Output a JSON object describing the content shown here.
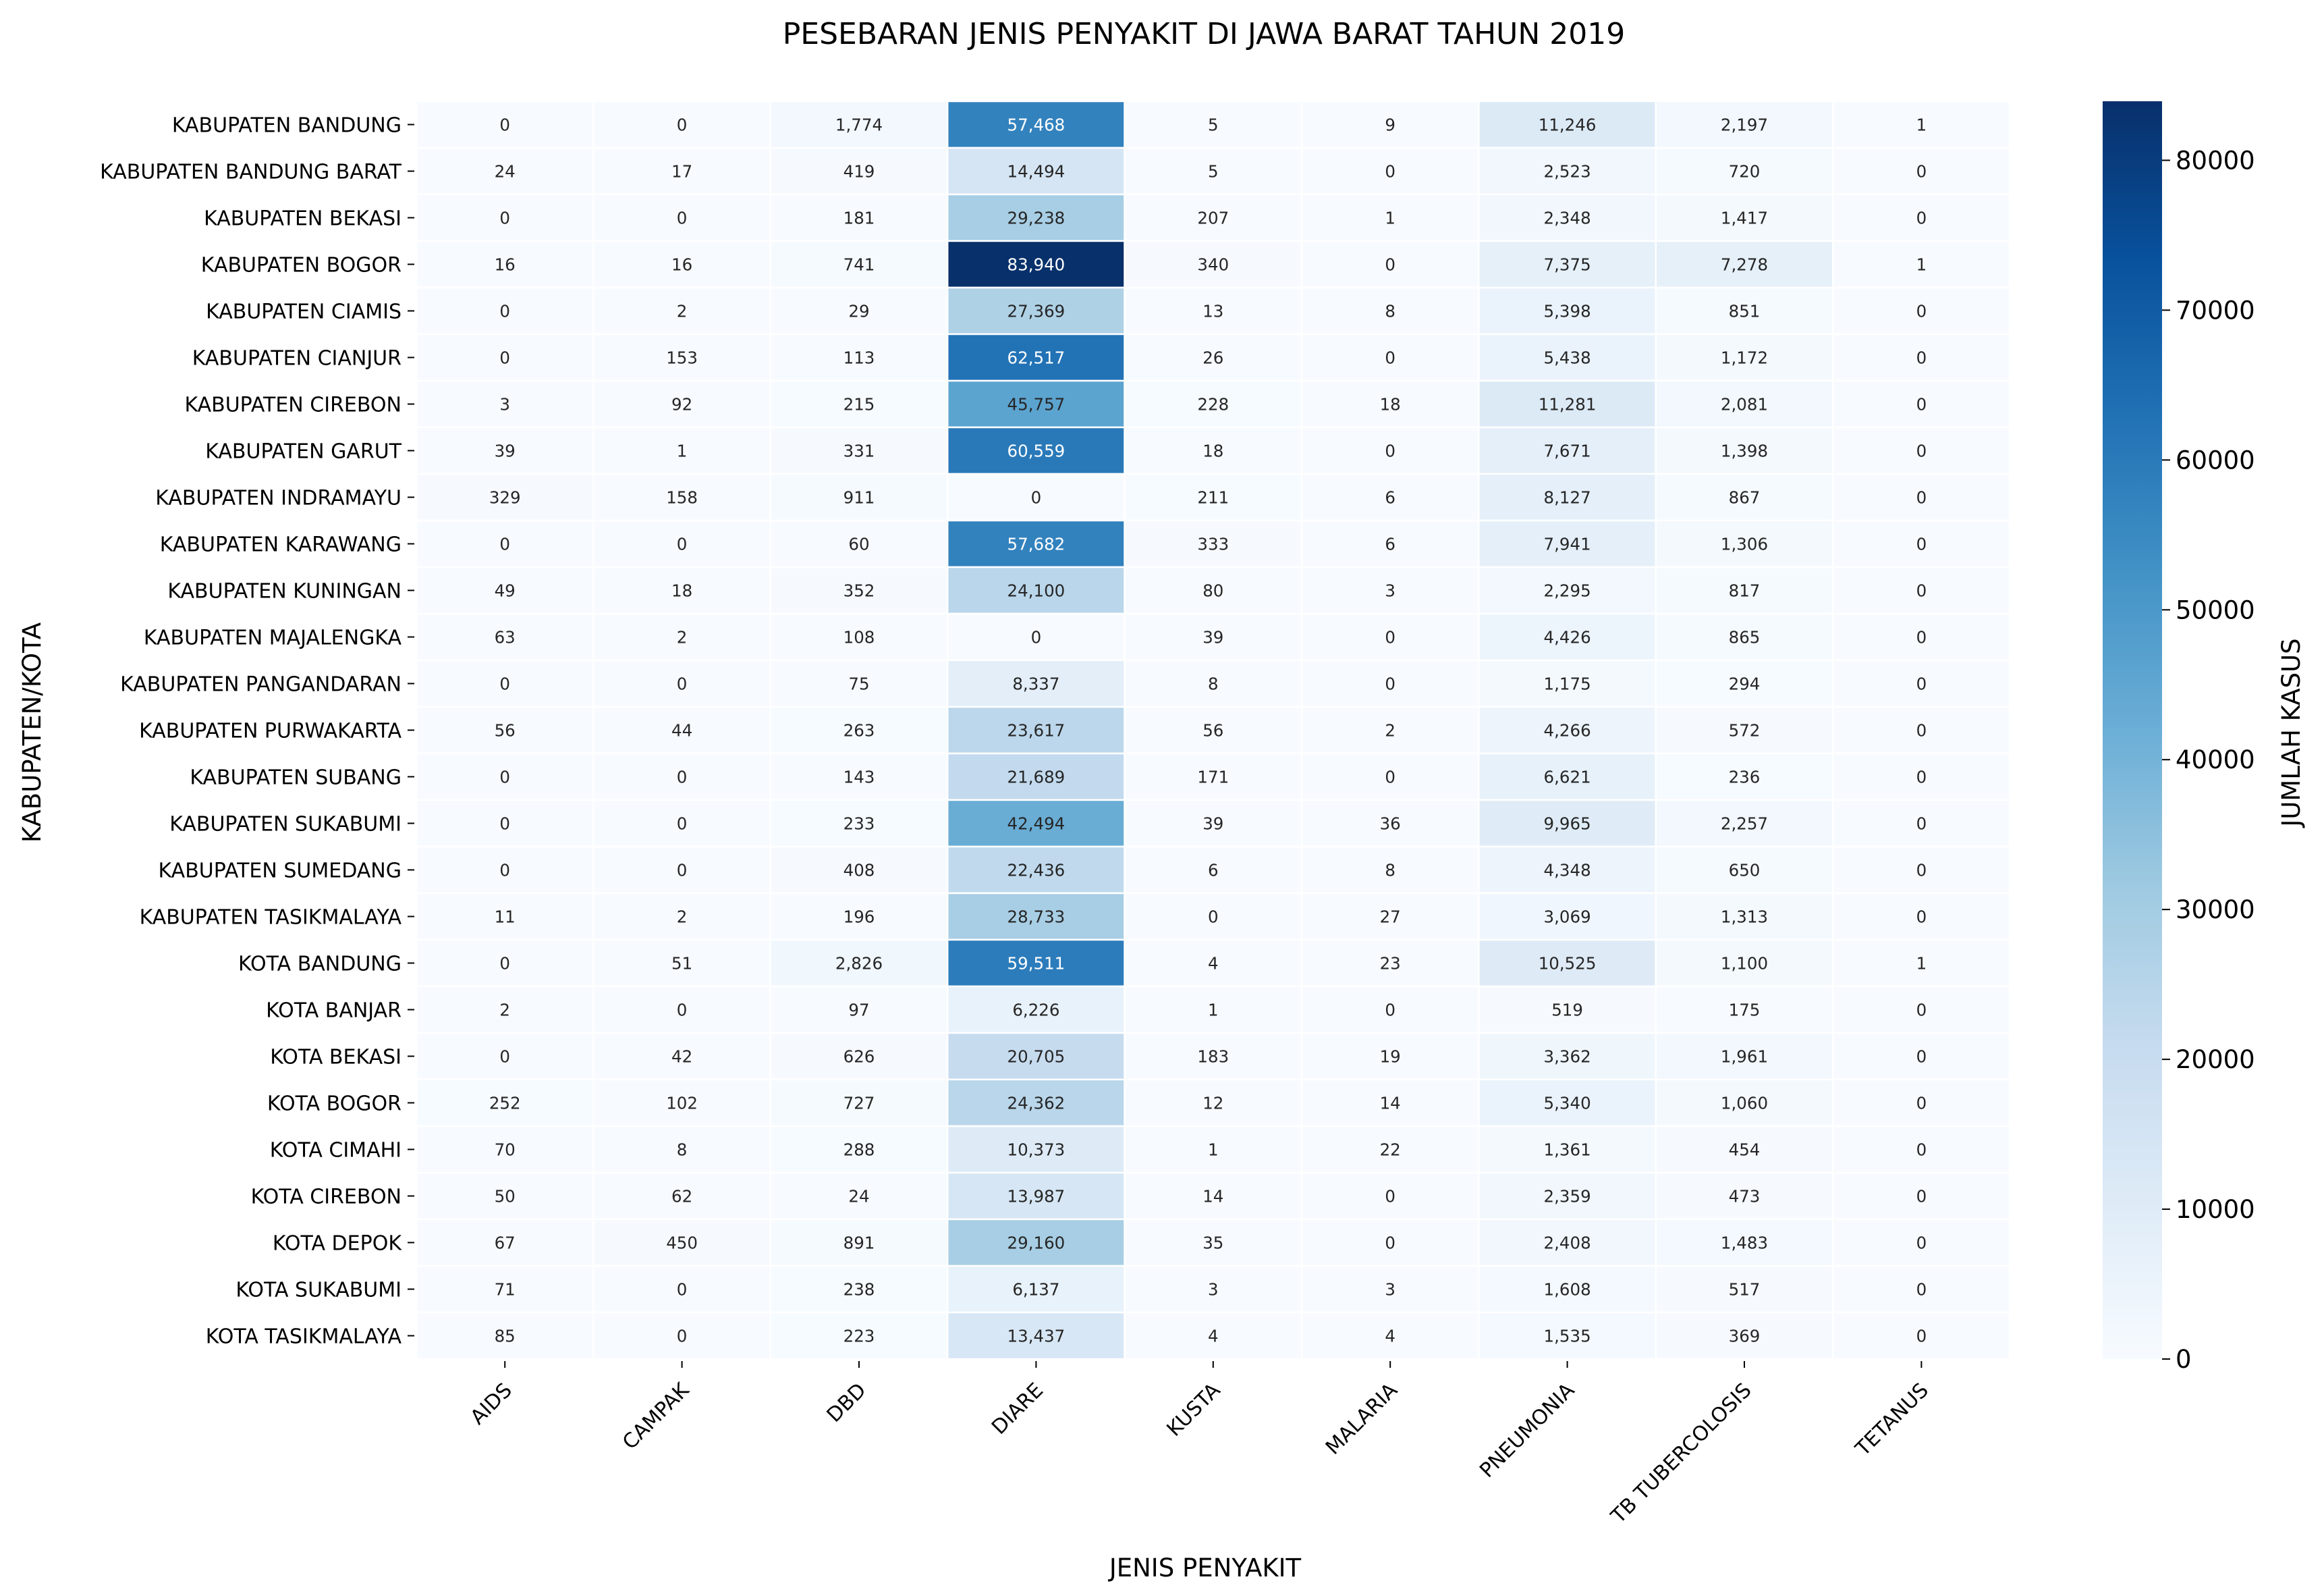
{
  "chart_data": {
    "type": "heatmap",
    "title": "PESEBARAN JENIS PENYAKIT DI JAWA BARAT TAHUN 2019",
    "xlabel": "JENIS PENYAKIT",
    "ylabel": "KABUPATEN/KOTA",
    "colorbar_label": "JUMLAH KASUS",
    "colormap": "Blues",
    "colors": {
      "min": "#f7fbff",
      "max": "#08306b"
    },
    "value_range": [
      0,
      83940
    ],
    "colorbar_ticks": [
      "0",
      "10000",
      "20000",
      "30000",
      "40000",
      "50000",
      "60000",
      "70000",
      "80000"
    ],
    "colorbar_tick_values": [
      0,
      10000,
      20000,
      30000,
      40000,
      50000,
      60000,
      70000,
      80000
    ],
    "columns": [
      "AIDS",
      "CAMPAK",
      "DBD",
      "DIARE",
      "KUSTA",
      "MALARIA",
      "PNEUMONIA",
      "TB TUBERCOLOSIS",
      "TETANUS"
    ],
    "rows": [
      "KABUPATEN BANDUNG",
      "KABUPATEN BANDUNG BARAT",
      "KABUPATEN BEKASI",
      "KABUPATEN BOGOR",
      "KABUPATEN CIAMIS",
      "KABUPATEN CIANJUR",
      "KABUPATEN CIREBON",
      "KABUPATEN GARUT",
      "KABUPATEN INDRAMAYU",
      "KABUPATEN KARAWANG",
      "KABUPATEN KUNINGAN",
      "KABUPATEN MAJALENGKA",
      "KABUPATEN PANGANDARAN",
      "KABUPATEN PURWAKARTA",
      "KABUPATEN SUBANG",
      "KABUPATEN SUKABUMI",
      "KABUPATEN SUMEDANG",
      "KABUPATEN TASIKMALAYA",
      "KOTA BANDUNG",
      "KOTA BANJAR",
      "KOTA BEKASI",
      "KOTA BOGOR",
      "KOTA CIMAHI",
      "KOTA CIREBON",
      "KOTA DEPOK",
      "KOTA SUKABUMI",
      "KOTA TASIKMALAYA"
    ],
    "values": [
      [
        0,
        0,
        1774,
        57468,
        5,
        9,
        11246,
        2197,
        1
      ],
      [
        24,
        17,
        419,
        14494,
        5,
        0,
        2523,
        720,
        0
      ],
      [
        0,
        0,
        181,
        29238,
        207,
        1,
        2348,
        1417,
        0
      ],
      [
        16,
        16,
        741,
        83940,
        340,
        0,
        7375,
        7278,
        1
      ],
      [
        0,
        2,
        29,
        27369,
        13,
        8,
        5398,
        851,
        0
      ],
      [
        0,
        153,
        113,
        62517,
        26,
        0,
        5438,
        1172,
        0
      ],
      [
        3,
        92,
        215,
        45757,
        228,
        18,
        11281,
        2081,
        0
      ],
      [
        39,
        1,
        331,
        60559,
        18,
        0,
        7671,
        1398,
        0
      ],
      [
        329,
        158,
        911,
        0,
        211,
        6,
        8127,
        867,
        0
      ],
      [
        0,
        0,
        60,
        57682,
        333,
        6,
        7941,
        1306,
        0
      ],
      [
        49,
        18,
        352,
        24100,
        80,
        3,
        2295,
        817,
        0
      ],
      [
        63,
        2,
        108,
        0,
        39,
        0,
        4426,
        865,
        0
      ],
      [
        0,
        0,
        75,
        8337,
        8,
        0,
        1175,
        294,
        0
      ],
      [
        56,
        44,
        263,
        23617,
        56,
        2,
        4266,
        572,
        0
      ],
      [
        0,
        0,
        143,
        21689,
        171,
        0,
        6621,
        236,
        0
      ],
      [
        0,
        0,
        233,
        42494,
        39,
        36,
        9965,
        2257,
        0
      ],
      [
        0,
        0,
        408,
        22436,
        6,
        8,
        4348,
        650,
        0
      ],
      [
        11,
        2,
        196,
        28733,
        0,
        27,
        3069,
        1313,
        0
      ],
      [
        0,
        51,
        2826,
        59511,
        4,
        23,
        10525,
        1100,
        1
      ],
      [
        2,
        0,
        97,
        6226,
        1,
        0,
        519,
        175,
        0
      ],
      [
        0,
        42,
        626,
        20705,
        183,
        19,
        3362,
        1961,
        0
      ],
      [
        252,
        102,
        727,
        24362,
        12,
        14,
        5340,
        1060,
        0
      ],
      [
        70,
        8,
        288,
        10373,
        1,
        22,
        1361,
        454,
        0
      ],
      [
        50,
        62,
        24,
        13987,
        14,
        0,
        2359,
        473,
        0
      ],
      [
        67,
        450,
        891,
        29160,
        35,
        0,
        2408,
        1483,
        0
      ],
      [
        71,
        0,
        238,
        6137,
        3,
        3,
        1608,
        517,
        0
      ],
      [
        85,
        0,
        223,
        13437,
        4,
        4,
        1535,
        369,
        0
      ]
    ]
  }
}
